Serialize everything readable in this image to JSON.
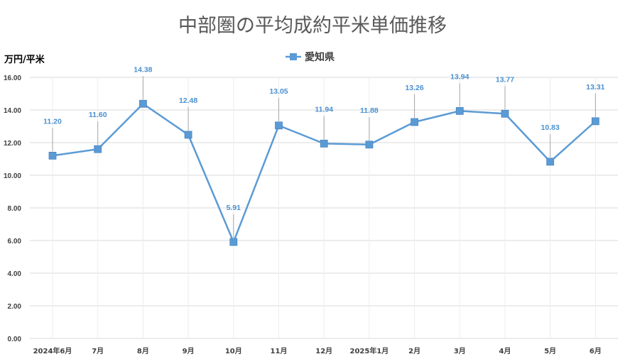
{
  "chart_data": {
    "type": "line",
    "title": "中部圏の平均成約平米単価推移",
    "ylabel": "万円/平米",
    "xlabel": "",
    "categories": [
      "2024年6月",
      "7月",
      "8月",
      "9月",
      "10月",
      "11月",
      "12月",
      "2025年1月",
      "2月",
      "3月",
      "4月",
      "5月",
      "6月"
    ],
    "series": [
      {
        "name": "愛知県",
        "values": [
          11.2,
          11.6,
          14.38,
          12.48,
          5.91,
          13.05,
          11.94,
          11.88,
          13.26,
          13.94,
          13.77,
          10.83,
          13.31
        ],
        "labels": [
          "11.20",
          "11.60",
          "14.38",
          "12.48",
          "5.91",
          "13.05",
          "11.94",
          "11.88",
          "13.26",
          "13.94",
          "13.77",
          "10.83",
          "13.31"
        ],
        "color": "#5b9bd5"
      }
    ],
    "ylim": [
      0,
      16
    ],
    "yticks": [
      "0.00",
      "2.00",
      "4.00",
      "6.00",
      "8.00",
      "10.00",
      "12.00",
      "14.00",
      "16.00"
    ],
    "grid": true,
    "legend_position": "top",
    "marker": "square"
  }
}
